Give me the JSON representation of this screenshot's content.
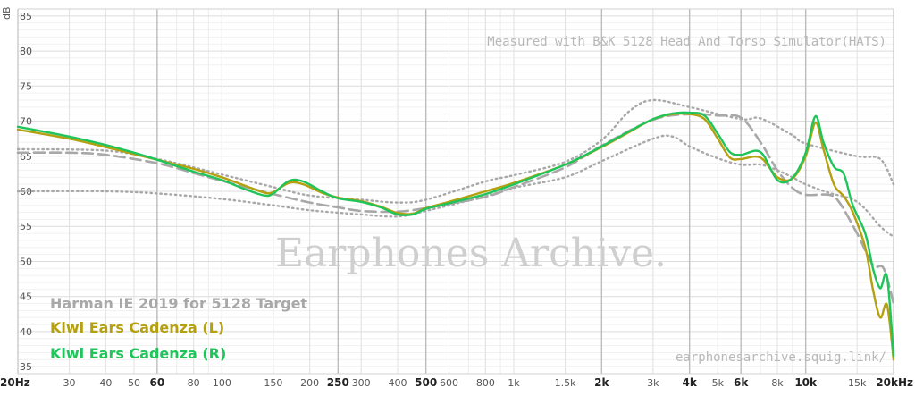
{
  "chart_data": {
    "type": "line",
    "y_unit": "dB",
    "x_scale": "log",
    "xlim": [
      20,
      20000
    ],
    "ylim": [
      34,
      86
    ],
    "grid": true,
    "legend_position": "bottom-left",
    "y_ticks": [
      35,
      40,
      45,
      50,
      55,
      60,
      65,
      70,
      75,
      80,
      85
    ],
    "x_ticks": [
      {
        "v": 20,
        "label": "20Hz",
        "bold": true
      },
      {
        "v": 30,
        "label": "30",
        "bold": false
      },
      {
        "v": 40,
        "label": "40",
        "bold": false
      },
      {
        "v": 50,
        "label": "50",
        "bold": false
      },
      {
        "v": 60,
        "label": "60",
        "bold": true
      },
      {
        "v": 80,
        "label": "80",
        "bold": false
      },
      {
        "v": 100,
        "label": "100",
        "bold": false
      },
      {
        "v": 150,
        "label": "150",
        "bold": false
      },
      {
        "v": 200,
        "label": "200",
        "bold": false
      },
      {
        "v": 250,
        "label": "250",
        "bold": true
      },
      {
        "v": 300,
        "label": "300",
        "bold": false
      },
      {
        "v": 400,
        "label": "400",
        "bold": false
      },
      {
        "v": 500,
        "label": "500",
        "bold": true
      },
      {
        "v": 600,
        "label": "600",
        "bold": false
      },
      {
        "v": 800,
        "label": "800",
        "bold": false
      },
      {
        "v": 1000,
        "label": "1k",
        "bold": false
      },
      {
        "v": 1500,
        "label": "1.5k",
        "bold": false
      },
      {
        "v": 2000,
        "label": "2k",
        "bold": true
      },
      {
        "v": 3000,
        "label": "3k",
        "bold": false
      },
      {
        "v": 4000,
        "label": "4k",
        "bold": true
      },
      {
        "v": 5000,
        "label": "5k",
        "bold": false
      },
      {
        "v": 6000,
        "label": "6k",
        "bold": true
      },
      {
        "v": 8000,
        "label": "8k",
        "bold": false
      },
      {
        "v": 10000,
        "label": "10k",
        "bold": true
      },
      {
        "v": 15000,
        "label": "15k",
        "bold": false
      },
      {
        "v": 20000,
        "label": "20kHz",
        "bold": true
      }
    ],
    "annotation_top": "Measured with B&K 5128 Head And Torso Simulator(HATS)",
    "annotation_bottom": "earphonesarchive.squig.link/",
    "watermark": "Earphones Archive.",
    "series": [
      {
        "name": "Harman IE 2019 for 5128 Target",
        "color": "#a8a8a8",
        "style": "dashed",
        "points": [
          [
            20,
            65.5
          ],
          [
            30,
            65.5
          ],
          [
            40,
            65.2
          ],
          [
            60,
            64
          ],
          [
            80,
            62.6
          ],
          [
            100,
            61.5
          ],
          [
            150,
            59.6
          ],
          [
            200,
            58.4
          ],
          [
            250,
            57.7
          ],
          [
            300,
            57.2
          ],
          [
            400,
            57.1
          ],
          [
            500,
            57.6
          ],
          [
            600,
            58.2
          ],
          [
            800,
            59.2
          ],
          [
            1000,
            60.6
          ],
          [
            1500,
            63.4
          ],
          [
            2000,
            66.5
          ],
          [
            3000,
            70.2
          ],
          [
            4000,
            71
          ],
          [
            5000,
            70.8
          ],
          [
            6000,
            70.5
          ],
          [
            7000,
            67
          ],
          [
            8000,
            63
          ],
          [
            9000,
            60.5
          ],
          [
            10000,
            59.5
          ],
          [
            12000,
            59.5
          ],
          [
            13000,
            58.5
          ],
          [
            15000,
            54
          ],
          [
            17000,
            49.5
          ],
          [
            18500,
            49
          ],
          [
            20000,
            44
          ]
        ]
      },
      {
        "name": "Kiwi Ears Cadenza (L)",
        "color": "#b5a010",
        "style": "solid",
        "points": [
          [
            20,
            68.8
          ],
          [
            30,
            67.5
          ],
          [
            40,
            66.3
          ],
          [
            50,
            65.3
          ],
          [
            60,
            64.5
          ],
          [
            80,
            63.2
          ],
          [
            100,
            62
          ],
          [
            120,
            60.8
          ],
          [
            140,
            59.8
          ],
          [
            150,
            59.9
          ],
          [
            170,
            61.2
          ],
          [
            190,
            61
          ],
          [
            220,
            59.8
          ],
          [
            250,
            59.1
          ],
          [
            300,
            58.6
          ],
          [
            350,
            57.8
          ],
          [
            400,
            56.9
          ],
          [
            450,
            56.8
          ],
          [
            500,
            57.6
          ],
          [
            600,
            58.5
          ],
          [
            800,
            60
          ],
          [
            1000,
            61.2
          ],
          [
            1500,
            63.8
          ],
          [
            2000,
            66.3
          ],
          [
            2500,
            68.5
          ],
          [
            3000,
            70.3
          ],
          [
            3500,
            71
          ],
          [
            4000,
            71
          ],
          [
            4500,
            70.3
          ],
          [
            5000,
            67.5
          ],
          [
            5500,
            64.8
          ],
          [
            6000,
            64.6
          ],
          [
            7000,
            64.8
          ],
          [
            8000,
            62
          ],
          [
            9000,
            61.8
          ],
          [
            10000,
            65
          ],
          [
            10800,
            69.8
          ],
          [
            11500,
            66
          ],
          [
            12500,
            61
          ],
          [
            13500,
            59.3
          ],
          [
            14500,
            57
          ],
          [
            16000,
            52
          ],
          [
            17000,
            46
          ],
          [
            18000,
            42
          ],
          [
            19000,
            43.8
          ],
          [
            20000,
            36
          ]
        ]
      },
      {
        "name": "Kiwi Ears Cadenza (R)",
        "color": "#1fc45a",
        "style": "solid",
        "points": [
          [
            20,
            69.2
          ],
          [
            30,
            67.8
          ],
          [
            40,
            66.6
          ],
          [
            50,
            65.5
          ],
          [
            60,
            64.5
          ],
          [
            80,
            62.8
          ],
          [
            100,
            61.6
          ],
          [
            120,
            60.3
          ],
          [
            140,
            59.4
          ],
          [
            150,
            59.7
          ],
          [
            170,
            61.5
          ],
          [
            190,
            61.4
          ],
          [
            220,
            60
          ],
          [
            250,
            59
          ],
          [
            300,
            58.5
          ],
          [
            350,
            57.7
          ],
          [
            400,
            56.7
          ],
          [
            450,
            56.7
          ],
          [
            500,
            57.5
          ],
          [
            600,
            58.3
          ],
          [
            800,
            59.6
          ],
          [
            1000,
            61
          ],
          [
            1500,
            63.8
          ],
          [
            2000,
            66.4
          ],
          [
            2500,
            68.6
          ],
          [
            3000,
            70.3
          ],
          [
            3500,
            71.1
          ],
          [
            4000,
            71.2
          ],
          [
            4500,
            70.8
          ],
          [
            5000,
            68.2
          ],
          [
            5500,
            65.6
          ],
          [
            6000,
            65.2
          ],
          [
            7000,
            65.6
          ],
          [
            8000,
            61.6
          ],
          [
            9000,
            61.9
          ],
          [
            10000,
            65.5
          ],
          [
            10800,
            70.7
          ],
          [
            11500,
            67
          ],
          [
            12500,
            63.5
          ],
          [
            13500,
            62.5
          ],
          [
            14500,
            58
          ],
          [
            16000,
            54
          ],
          [
            17000,
            49
          ],
          [
            18000,
            46.2
          ],
          [
            19000,
            47.8
          ],
          [
            20000,
            36.5
          ]
        ]
      },
      {
        "name": "",
        "color": "#a8a8a8",
        "style": "dotted",
        "points": [
          [
            20,
            66
          ],
          [
            40,
            65.8
          ],
          [
            60,
            64.6
          ],
          [
            80,
            63.4
          ],
          [
            100,
            62.4
          ],
          [
            150,
            60.6
          ],
          [
            200,
            59.4
          ],
          [
            300,
            58.8
          ],
          [
            400,
            58.4
          ],
          [
            500,
            58.8
          ],
          [
            800,
            61.4
          ],
          [
            1000,
            62.3
          ],
          [
            1500,
            64.2
          ],
          [
            2000,
            67.3
          ],
          [
            2500,
            71.5
          ],
          [
            3000,
            73
          ],
          [
            4000,
            72
          ],
          [
            6000,
            70.3
          ],
          [
            7000,
            70.4
          ],
          [
            9000,
            68
          ],
          [
            10000,
            66.8
          ],
          [
            15000,
            65
          ],
          [
            18000,
            64.6
          ],
          [
            20000,
            61
          ]
        ]
      },
      {
        "name": "",
        "color": "#a8a8a8",
        "style": "dotted",
        "points": [
          [
            20,
            60
          ],
          [
            40,
            60
          ],
          [
            60,
            59.7
          ],
          [
            100,
            58.9
          ],
          [
            150,
            58
          ],
          [
            200,
            57.3
          ],
          [
            300,
            56.7
          ],
          [
            400,
            56.4
          ],
          [
            500,
            57.2
          ],
          [
            800,
            59.3
          ],
          [
            1000,
            60.5
          ],
          [
            1500,
            62
          ],
          [
            2000,
            64.3
          ],
          [
            3000,
            67.5
          ],
          [
            3500,
            67.8
          ],
          [
            4000,
            66.4
          ],
          [
            5000,
            64.7
          ],
          [
            6000,
            63.8
          ],
          [
            7000,
            63.8
          ],
          [
            8000,
            63
          ],
          [
            9000,
            62
          ],
          [
            10000,
            61
          ],
          [
            12000,
            59.8
          ],
          [
            15000,
            58.5
          ],
          [
            18000,
            55
          ],
          [
            20000,
            53.5
          ]
        ]
      }
    ]
  }
}
